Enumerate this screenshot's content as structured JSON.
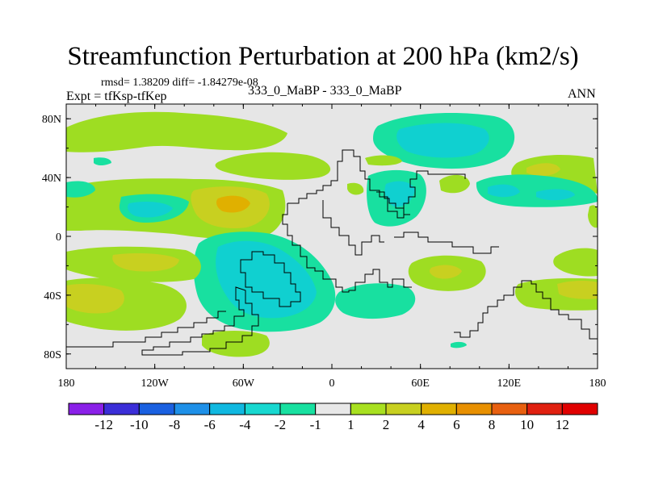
{
  "chart_data": {
    "type": "contour-map",
    "title": "Streamfunction Perturbation at 200 hPa (km2/s)",
    "stats": "rmsd= 1.38209 diff= -1.84279e-08",
    "experiment": "Expt = tfKsp-tfKep",
    "case": "333_0_MaBP - 333_0_MaBP",
    "season": "ANN",
    "x_ticks": [
      "180",
      "120W",
      "60W",
      "0",
      "60E",
      "120E",
      "180"
    ],
    "y_ticks": [
      "80N",
      "40N",
      "0",
      "40S",
      "80S"
    ],
    "x_range": [
      -180,
      180
    ],
    "y_range": [
      -90,
      90
    ],
    "legend": {
      "labels": [
        "-12",
        "-10",
        "-8",
        "-6",
        "-4",
        "-2",
        "-1",
        "1",
        "2",
        "4",
        "6",
        "8",
        "10",
        "12"
      ],
      "colors": [
        "#8a20e8",
        "#3b2ed8",
        "#1a60e0",
        "#1e90e8",
        "#10b8e0",
        "#18d8d0",
        "#18e0a0",
        "#e8e8e8",
        "#a8e020",
        "#c8d020",
        "#e0b000",
        "#e89000",
        "#e86010",
        "#e02010",
        "#e00000"
      ]
    }
  }
}
